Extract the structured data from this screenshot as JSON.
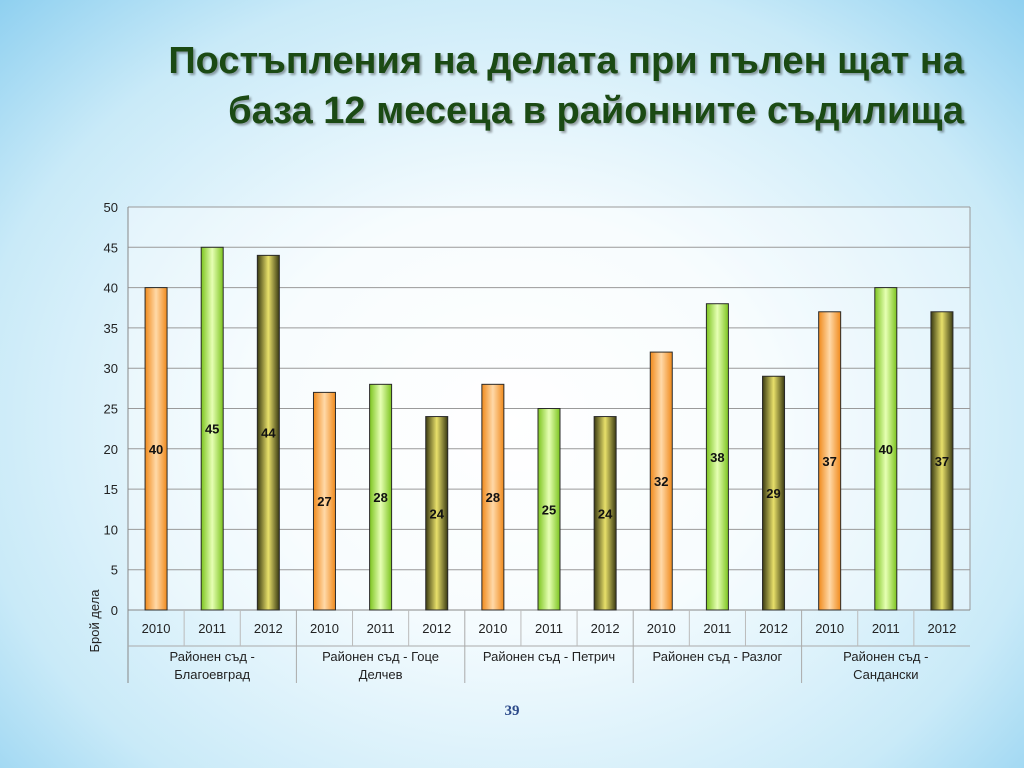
{
  "slide": {
    "title_line1": "Постъпления на делата при пълен щат на",
    "title_line2": "база 12 месеца в районните съдилища",
    "page_number": "39"
  },
  "chart_data": {
    "type": "bar",
    "title": "",
    "xlabel": "",
    "ylabel": "Брой дела",
    "ylim": [
      0,
      50
    ],
    "yticks": [
      0,
      5,
      10,
      15,
      20,
      25,
      30,
      35,
      40,
      45,
      50
    ],
    "grid": true,
    "legend": "none",
    "groups": [
      {
        "name": "Районен съд - Благоевград",
        "lines": [
          "Районен съд -",
          "Благоевград"
        ],
        "years": [
          "2010",
          "2011",
          "2012"
        ],
        "values": [
          40,
          45,
          44
        ]
      },
      {
        "name": "Районен съд - Гоце Делчев",
        "lines": [
          "Районен съд - Гоце",
          "Делчев"
        ],
        "years": [
          "2010",
          "2011",
          "2012"
        ],
        "values": [
          27,
          28,
          24
        ]
      },
      {
        "name": "Районен съд - Петрич",
        "lines": [
          "Районен съд - Петрич"
        ],
        "years": [
          "2010",
          "2011",
          "2012"
        ],
        "values": [
          28,
          25,
          24
        ]
      },
      {
        "name": "Районен съд - Разлог",
        "lines": [
          "Районен съд - Разлог"
        ],
        "years": [
          "2010",
          "2011",
          "2012"
        ],
        "values": [
          32,
          38,
          29
        ]
      },
      {
        "name": "Районен съд - Сандански",
        "lines": [
          "Районен съд -",
          "Сандански"
        ],
        "years": [
          "2010",
          "2011",
          "2012"
        ],
        "values": [
          37,
          40,
          37
        ]
      }
    ],
    "year_colors": {
      "2010": [
        "#f08a1c",
        "#ffd9a8",
        "#f08a1c"
      ],
      "2011": [
        "#7cc41f",
        "#e6ffb4",
        "#7cc41f"
      ],
      "2012": [
        "#3a3a12",
        "#e8e06a",
        "#3a3a12"
      ]
    }
  }
}
